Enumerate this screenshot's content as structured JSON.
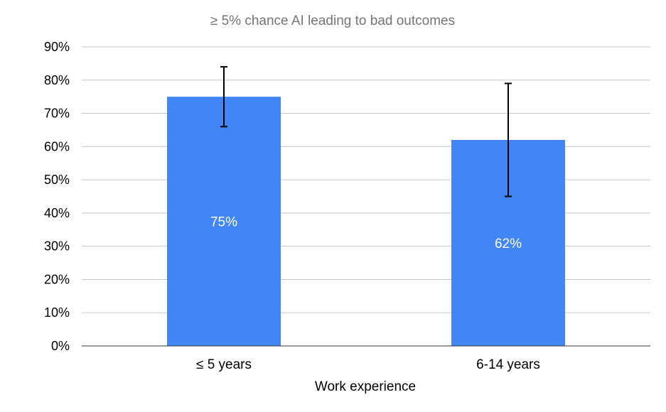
{
  "chart_data": {
    "type": "bar",
    "title": "≥ 5% chance AI leading to bad outcomes",
    "xlabel": "Work experience",
    "ylabel": "",
    "categories": [
      "≤ 5 years",
      "6-14 years"
    ],
    "values": [
      75,
      62
    ],
    "data_labels": [
      "75%",
      "62%"
    ],
    "error_bars": [
      {
        "low": 66,
        "high": 84
      },
      {
        "low": 45,
        "high": 79
      }
    ],
    "ylim": [
      0,
      90
    ],
    "yticks": [
      0,
      10,
      20,
      30,
      40,
      50,
      60,
      70,
      80,
      90
    ],
    "ytick_labels": [
      "0%",
      "10%",
      "20%",
      "30%",
      "40%",
      "50%",
      "60%",
      "70%",
      "80%",
      "90%"
    ],
    "grid": true,
    "legend": "none",
    "colors": {
      "bar": "#4285f4"
    }
  }
}
